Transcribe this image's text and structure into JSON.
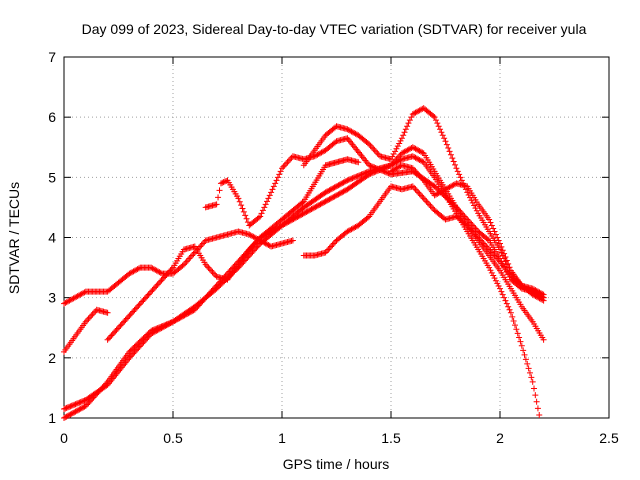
{
  "chart_data": {
    "type": "scatter",
    "title": "Day 099 of 2023, Sidereal Day-to-day VTEC variation (SDTVAR) for receiver yula",
    "xlabel": "GPS time / hours",
    "ylabel": "SDTVAR / TECUs",
    "xlim": [
      0,
      2.5
    ],
    "ylim": [
      1,
      7
    ],
    "xticks": [
      0,
      0.5,
      1,
      1.5,
      2,
      2.5
    ],
    "xtick_labels": [
      "0",
      "0.5",
      "1",
      "1.5",
      "2",
      "2.5"
    ],
    "yticks": [
      1,
      2,
      3,
      4,
      5,
      6,
      7
    ],
    "ytick_labels": [
      "1",
      "2",
      "3",
      "4",
      "5",
      "6",
      "7"
    ],
    "grid": true,
    "marker": "+",
    "color": "#ff0000",
    "series": [
      {
        "name": "s1",
        "x": [
          0.0,
          0.05,
          0.1,
          0.15,
          0.2,
          0.25,
          0.3,
          0.35,
          0.4,
          0.45,
          0.5,
          0.55,
          0.6,
          0.65,
          0.7,
          0.75,
          0.8,
          0.85,
          0.9,
          0.95,
          1.0,
          1.05
        ],
        "y": [
          2.9,
          3.0,
          3.1,
          3.1,
          3.1,
          3.25,
          3.4,
          3.5,
          3.5,
          3.4,
          3.4,
          3.55,
          3.75,
          3.95,
          4.0,
          4.05,
          4.1,
          4.05,
          3.95,
          3.85,
          3.9,
          3.95
        ]
      },
      {
        "name": "s2",
        "x": [
          0.0,
          0.05,
          0.1,
          0.15,
          0.2
        ],
        "y": [
          2.1,
          2.35,
          2.6,
          2.8,
          2.75
        ]
      },
      {
        "name": "s3",
        "x": [
          0.0,
          0.1,
          0.2,
          0.3,
          0.4,
          0.5,
          0.6,
          0.7,
          0.8,
          0.9,
          1.0,
          1.1,
          1.2,
          1.3,
          1.4,
          1.5,
          1.55,
          1.6,
          1.65,
          1.7,
          1.75,
          1.8,
          1.85,
          1.9,
          1.95,
          2.0,
          2.05,
          2.1,
          2.15,
          2.2
        ],
        "y": [
          1.15,
          1.3,
          1.55,
          2.0,
          2.4,
          2.6,
          2.8,
          3.2,
          3.6,
          4.0,
          4.2,
          4.4,
          4.6,
          4.8,
          5.05,
          5.2,
          5.4,
          5.5,
          5.4,
          5.1,
          4.8,
          4.5,
          4.2,
          4.0,
          3.8,
          3.6,
          3.35,
          3.2,
          3.1,
          3.0
        ]
      },
      {
        "name": "s4",
        "x": [
          0.0,
          0.1,
          0.2,
          0.3,
          0.4,
          0.5,
          0.6,
          0.7,
          0.8,
          0.9,
          1.0,
          1.1,
          1.2,
          1.3,
          1.4,
          1.5,
          1.55,
          1.6,
          1.65,
          1.7,
          1.75,
          1.8,
          1.85,
          1.9,
          1.95,
          2.0,
          2.05,
          2.1,
          2.15,
          2.18
        ],
        "y": [
          1.0,
          1.2,
          1.6,
          2.1,
          2.45,
          2.6,
          2.85,
          3.15,
          3.5,
          3.9,
          4.2,
          4.5,
          4.75,
          4.95,
          5.1,
          5.2,
          5.3,
          5.35,
          5.25,
          5.0,
          4.7,
          4.4,
          4.1,
          3.8,
          3.5,
          3.15,
          2.75,
          2.2,
          1.6,
          1.05
        ]
      },
      {
        "name": "s5",
        "x": [
          0.2,
          0.3,
          0.4,
          0.5,
          0.55,
          0.6,
          0.65,
          0.7,
          0.75,
          0.8,
          0.85,
          0.9,
          0.95,
          1.0,
          1.1,
          1.2,
          1.3,
          1.35
        ],
        "y": [
          2.3,
          2.7,
          3.1,
          3.5,
          3.8,
          3.85,
          3.55,
          3.35,
          3.3,
          3.55,
          3.8,
          4.0,
          4.15,
          4.3,
          4.6,
          5.2,
          5.3,
          5.25
        ]
      },
      {
        "name": "s6",
        "x": [
          0.65,
          0.7,
          0.72,
          0.75,
          0.8,
          0.85,
          0.9,
          0.95,
          1.0,
          1.05,
          1.1,
          1.15,
          1.2,
          1.25,
          1.3,
          1.4,
          1.5,
          1.6,
          1.7,
          1.8,
          1.85,
          1.9,
          1.95,
          2.0,
          2.05,
          2.1,
          2.15,
          2.2
        ],
        "y": [
          4.5,
          4.55,
          4.9,
          4.95,
          4.65,
          4.2,
          4.35,
          4.75,
          5.15,
          5.35,
          5.3,
          5.35,
          5.45,
          5.6,
          5.65,
          5.2,
          5.05,
          5.1,
          4.85,
          4.5,
          4.3,
          4.1,
          3.95,
          3.65,
          3.3,
          3.15,
          3.1,
          3.0
        ]
      },
      {
        "name": "s7",
        "x": [
          1.1,
          1.15,
          1.2,
          1.25,
          1.3,
          1.35,
          1.4,
          1.45,
          1.5,
          1.55,
          1.58,
          1.6,
          1.65,
          1.7,
          1.75,
          1.8,
          1.85,
          1.9,
          1.95,
          2.0,
          2.05,
          2.1,
          2.15,
          2.2
        ],
        "y": [
          5.2,
          5.45,
          5.7,
          5.85,
          5.8,
          5.7,
          5.55,
          5.35,
          5.3,
          5.65,
          5.9,
          6.05,
          6.15,
          6.0,
          5.6,
          5.15,
          4.75,
          4.4,
          4.1,
          3.8,
          3.4,
          3.2,
          3.05,
          2.95
        ]
      },
      {
        "name": "s8",
        "x": [
          1.1,
          1.15,
          1.2,
          1.25,
          1.3,
          1.35,
          1.4,
          1.45,
          1.5,
          1.55,
          1.6,
          1.65,
          1.7,
          1.75,
          1.8,
          1.85,
          1.9,
          1.95,
          2.0,
          2.05,
          2.1,
          2.15,
          2.2
        ],
        "y": [
          3.7,
          3.7,
          3.75,
          3.95,
          4.1,
          4.2,
          4.35,
          4.6,
          4.85,
          4.8,
          4.85,
          4.65,
          4.45,
          4.3,
          4.35,
          4.2,
          3.95,
          3.7,
          3.45,
          3.15,
          2.85,
          2.6,
          2.3
        ]
      },
      {
        "name": "s9",
        "x": [
          1.5,
          1.55,
          1.6,
          1.65,
          1.7,
          1.75,
          1.8,
          1.85,
          1.9,
          1.95,
          2.0,
          2.05,
          2.1,
          2.15,
          2.2
        ],
        "y": [
          5.1,
          5.2,
          5.15,
          4.95,
          4.7,
          4.8,
          4.9,
          4.85,
          4.55,
          4.3,
          3.9,
          3.45,
          3.2,
          3.15,
          3.05
        ]
      }
    ]
  }
}
